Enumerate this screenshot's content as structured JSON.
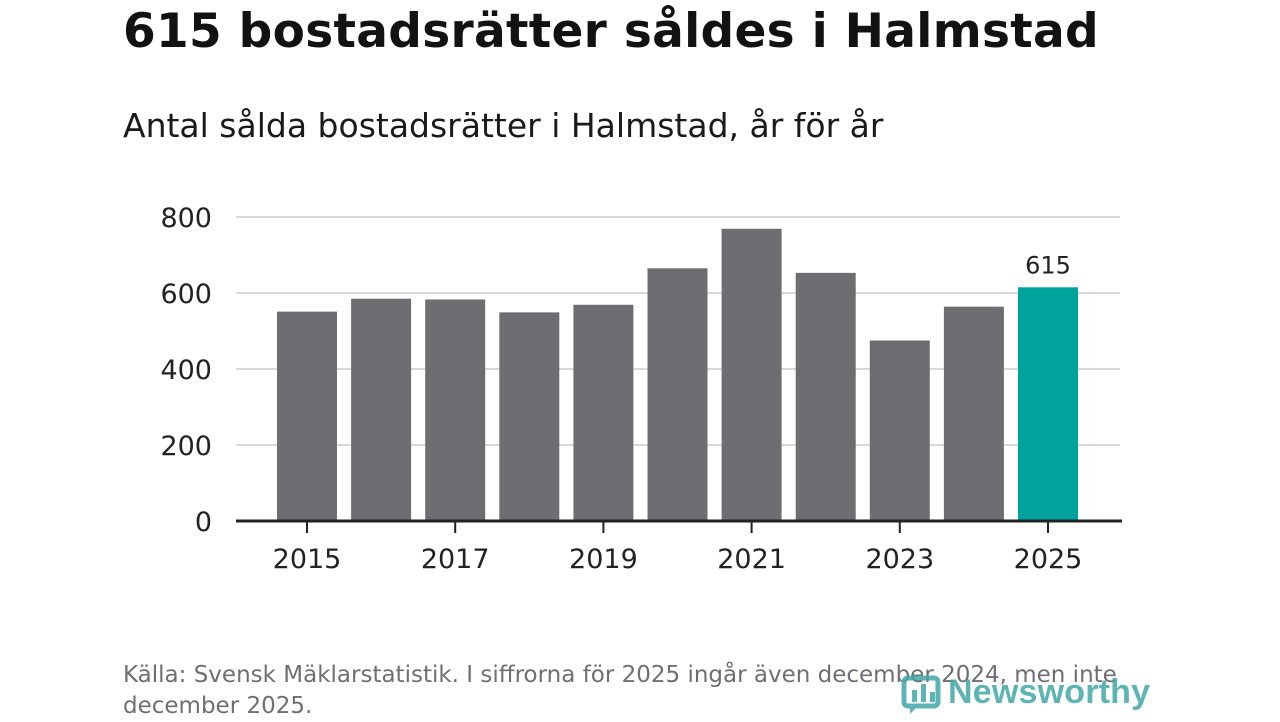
{
  "title": "615 bostadsrätter såldes i Halmstad",
  "subtitle": "Antal sålda bostadsrätter i Halmstad, år för år",
  "source": "Källa: Svensk Mäklarstatistik. I siffrorna för 2025 ingår även december 2024, men inte december 2025.",
  "logo_text": "Newsworthy",
  "colors": {
    "bar": "#6e6d72",
    "highlight": "#00a39b",
    "grid": "#d9d9d9",
    "axis": "#222222",
    "text": "#222222",
    "logo": "#42a7a7"
  },
  "chart_data": {
    "type": "bar",
    "categories": [
      "2015",
      "2016",
      "2017",
      "2018",
      "2019",
      "2020",
      "2021",
      "2022",
      "2023",
      "2024",
      "2025"
    ],
    "values": [
      551,
      585,
      583,
      549,
      569,
      665,
      769,
      653,
      475,
      564,
      615
    ],
    "highlight_index": 10,
    "data_labels": [
      {
        "index": 10,
        "text": "615"
      }
    ],
    "x_tick_labels": [
      "2015",
      "2017",
      "2019",
      "2021",
      "2023",
      "2025"
    ],
    "y_ticks": [
      0,
      200,
      400,
      600,
      800
    ],
    "ylim": [
      0,
      800
    ],
    "grid": true,
    "xlabel": "",
    "ylabel": ""
  }
}
